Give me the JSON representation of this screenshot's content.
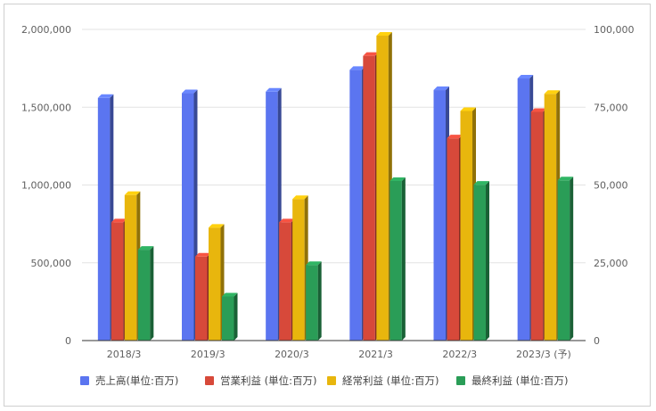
{
  "chart_data": {
    "type": "bar",
    "categories": [
      "2018/3",
      "2019/3",
      "2020/3",
      "2021/3",
      "2022/3",
      "2023/3 (予)"
    ],
    "series": [
      {
        "name": "売上高(単位:百万)",
        "axis": "left",
        "color": "#5b75f0",
        "values": [
          1560000,
          1590000,
          1600000,
          1740000,
          1610000,
          1685000
        ]
      },
      {
        "name": "営業利益 (単位:百万)",
        "axis": "right",
        "color": "#d7493a",
        "values": [
          38000,
          27000,
          38000,
          91500,
          65000,
          73500
        ]
      },
      {
        "name": "経常利益 (単位:百万)",
        "axis": "right",
        "color": "#e8b60d",
        "values": [
          46800,
          36300,
          45500,
          98000,
          73800,
          79300
        ]
      },
      {
        "name": "最終利益 (単位:百万)",
        "axis": "right",
        "color": "#2a9d57",
        "values": [
          29200,
          14200,
          24300,
          51300,
          50100,
          51500
        ]
      }
    ],
    "left_axis": {
      "ylim": [
        0,
        2000000
      ],
      "ticks": [
        0,
        500000,
        1000000,
        1500000,
        2000000
      ],
      "tick_labels": [
        "0",
        "500,000",
        "1,000,000",
        "1,500,000",
        "2,000,000"
      ]
    },
    "right_axis": {
      "ylim": [
        0,
        100000
      ],
      "ticks": [
        0,
        25000,
        50000,
        75000,
        100000
      ],
      "tick_labels": [
        "0",
        "25,000",
        "50,000",
        "75,000",
        "100,000"
      ]
    },
    "grid": true,
    "legend_position": "bottom",
    "style": "3d-bars"
  }
}
